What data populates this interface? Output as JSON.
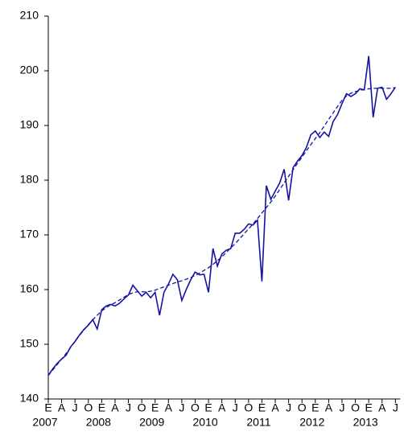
{
  "chart_data": {
    "type": "line",
    "categories": [
      "E",
      null,
      null,
      "A",
      null,
      null,
      "J",
      null,
      null,
      "O",
      null,
      null,
      "E",
      null,
      null,
      "A",
      null,
      null,
      "J",
      null,
      null,
      "O",
      null,
      null,
      "E",
      null,
      null,
      "A",
      null,
      null,
      "J",
      null,
      null,
      "O",
      null,
      null,
      "E",
      null,
      null,
      "A",
      null,
      null,
      "J",
      null,
      null,
      "O",
      null,
      null,
      "E",
      null,
      null,
      "A",
      null,
      null,
      "J",
      null,
      null,
      "O",
      null,
      null,
      "E",
      null,
      null,
      "A",
      null,
      null,
      "J",
      null,
      null,
      "O",
      null,
      null,
      "E",
      null,
      null,
      "A",
      null,
      null,
      "J"
    ],
    "years": [
      "2007",
      "2008",
      "2009",
      "2010",
      "2011",
      "2012",
      "2013"
    ],
    "series": [
      {
        "color": "#1414a0",
        "dash": false,
        "values": [
          144.3,
          145.5,
          146.5,
          147.3,
          148.0,
          149.5,
          150.5,
          151.7,
          152.7,
          153.5,
          154.5,
          152.8,
          156.3,
          157.0,
          157.3,
          157.0,
          157.5,
          158.3,
          159.0,
          160.8,
          159.8,
          158.8,
          159.5,
          158.5,
          159.5,
          155.3,
          159.5,
          161.0,
          162.8,
          161.8,
          158.0,
          160.0,
          161.8,
          163.2,
          162.7,
          162.8,
          159.5,
          167.5,
          164.3,
          166.5,
          167.2,
          167.5,
          170.3,
          170.3,
          171.0,
          172.0,
          171.8,
          172.7,
          161.5,
          179.0,
          176.5,
          178.0,
          179.5,
          182.0,
          176.3,
          182.3,
          183.5,
          184.5,
          186.0,
          188.3,
          189.0,
          187.8,
          188.8,
          188.0,
          190.7,
          192.0,
          194.0,
          195.8,
          195.3,
          195.8,
          196.7,
          196.5,
          202.7,
          191.5,
          196.8,
          197.0,
          194.8,
          195.8,
          197.0
        ]
      },
      {
        "color": "#1414a0",
        "dash": true,
        "values": [
          144.3,
          145.3,
          146.3,
          147.3,
          148.3,
          149.4,
          150.5,
          151.6,
          152.6,
          153.6,
          154.5,
          155.3,
          156.1,
          156.7,
          157.2,
          157.6,
          158.1,
          158.6,
          159.1,
          159.4,
          159.6,
          159.6,
          159.6,
          159.7,
          159.9,
          160.2,
          160.5,
          160.8,
          161.1,
          161.4,
          161.6,
          161.9,
          162.2,
          162.6,
          163.0,
          163.5,
          164.0,
          164.6,
          165.3,
          166.0,
          166.8,
          167.6,
          168.4,
          169.3,
          170.2,
          171.1,
          172.0,
          173.0,
          174.0,
          175.0,
          176.0,
          177.1,
          178.3,
          179.5,
          180.7,
          181.9,
          183.1,
          184.2,
          185.4,
          186.5,
          187.6,
          188.7,
          189.9,
          191.1,
          192.3,
          193.5,
          194.6,
          195.4,
          195.9,
          196.2,
          196.4,
          196.6,
          196.7,
          196.8,
          196.8,
          196.8,
          196.8,
          196.8,
          196.9
        ]
      }
    ],
    "ylim": [
      140,
      210
    ],
    "yticks": [
      140,
      150,
      160,
      170,
      180,
      190,
      200,
      210
    ],
    "grid": false
  }
}
